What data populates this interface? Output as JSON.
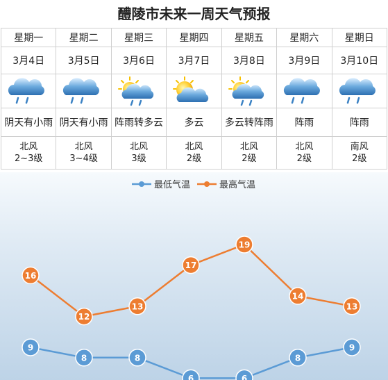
{
  "title": "醴陵市未来一周天气预报",
  "days": [
    {
      "weekday": "星期一",
      "date": "3月4日",
      "icon": "rain-cloud-icon",
      "weather": "阴天有小雨",
      "wind_dir": "北风",
      "wind_level": "2~3级"
    },
    {
      "weekday": "星期二",
      "date": "3月5日",
      "icon": "rain-cloud-icon",
      "weather": "阴天有小雨",
      "wind_dir": "北风",
      "wind_level": "3~4级"
    },
    {
      "weekday": "星期三",
      "date": "3月6日",
      "icon": "sun-cloud-rain-icon",
      "weather": "阵雨转多云",
      "wind_dir": "北风",
      "wind_level": "3级"
    },
    {
      "weekday": "星期四",
      "date": "3月7日",
      "icon": "sun-cloud-icon",
      "weather": "多云",
      "wind_dir": "北风",
      "wind_level": "2级"
    },
    {
      "weekday": "星期五",
      "date": "3月8日",
      "icon": "sun-cloud-rain-icon",
      "weather": "多云转阵雨",
      "wind_dir": "北风",
      "wind_level": "2级"
    },
    {
      "weekday": "星期六",
      "date": "3月9日",
      "icon": "rain-cloud-icon",
      "weather": "阵雨",
      "wind_dir": "北风",
      "wind_level": "2级"
    },
    {
      "weekday": "星期日",
      "date": "3月10日",
      "icon": "rain-cloud-icon",
      "weather": "阵雨",
      "wind_dir": "南风",
      "wind_level": "2级"
    }
  ],
  "chart_data": {
    "type": "line",
    "categories": [
      "3月4日",
      "3月5日",
      "3月6日",
      "3月7日",
      "3月8日",
      "3月9日",
      "3月10日"
    ],
    "series": [
      {
        "name": "最低气温",
        "values": [
          9,
          8,
          8,
          6,
          6,
          8,
          9
        ],
        "color": "#5b9bd5"
      },
      {
        "name": "最高气温",
        "values": [
          16,
          12,
          13,
          17,
          19,
          14,
          13
        ],
        "color": "#ed7d31"
      }
    ],
    "legend_position": "top-center",
    "grid": false,
    "data_labels": true
  }
}
